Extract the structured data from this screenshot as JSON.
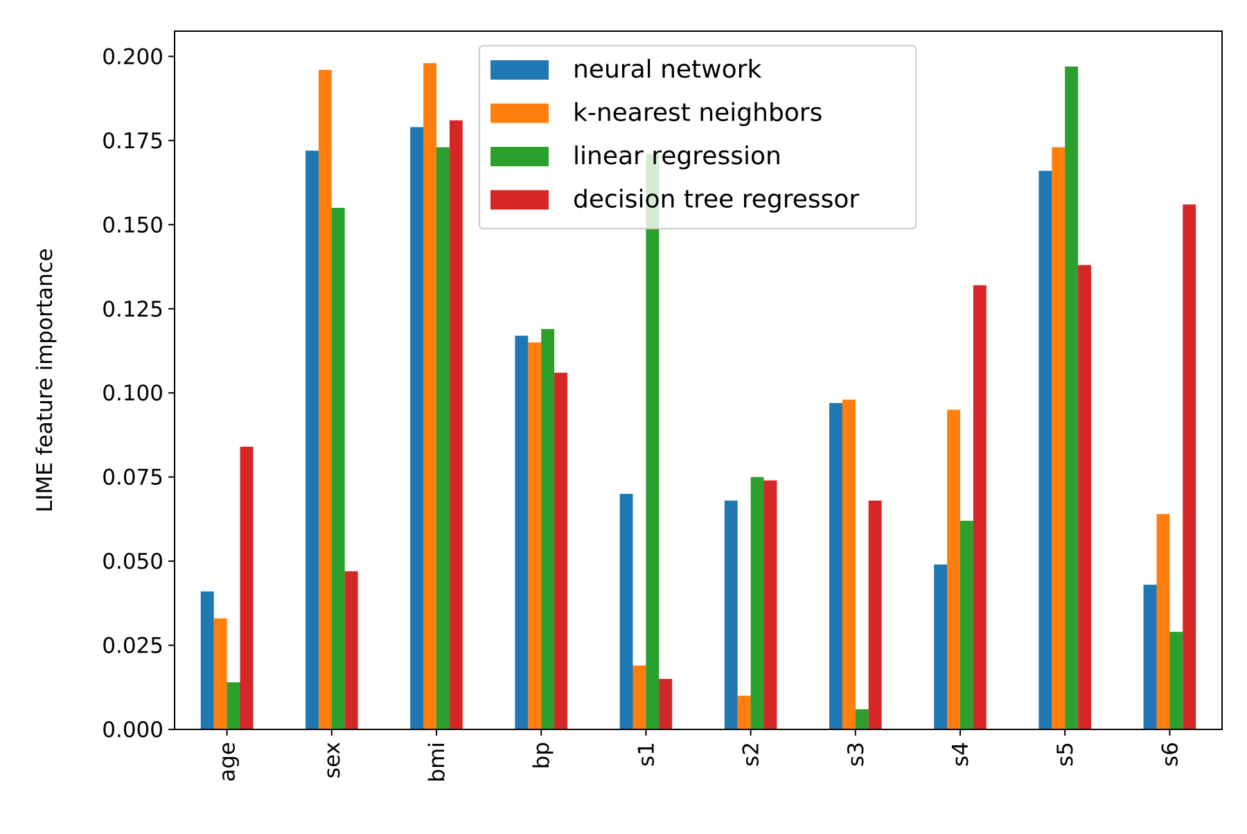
{
  "chart_data": {
    "type": "bar",
    "title": "",
    "xlabel": "",
    "ylabel": "LIME feature importance",
    "categories": [
      "age",
      "sex",
      "bmi",
      "bp",
      "s1",
      "s2",
      "s3",
      "s4",
      "s5",
      "s6"
    ],
    "series": [
      {
        "name": "neural network",
        "color": "#1f77b4",
        "values": [
          0.041,
          0.172,
          0.179,
          0.117,
          0.07,
          0.068,
          0.097,
          0.049,
          0.166,
          0.043
        ]
      },
      {
        "name": "k-nearest neighbors",
        "color": "#ff7f0e",
        "values": [
          0.033,
          0.196,
          0.198,
          0.115,
          0.019,
          0.01,
          0.098,
          0.095,
          0.173,
          0.064
        ]
      },
      {
        "name": "linear regression",
        "color": "#2ca02c",
        "values": [
          0.014,
          0.155,
          0.173,
          0.119,
          0.171,
          0.075,
          0.006,
          0.062,
          0.197,
          0.029
        ]
      },
      {
        "name": "decision tree regressor",
        "color": "#d62728",
        "values": [
          0.084,
          0.047,
          0.181,
          0.106,
          0.015,
          0.074,
          0.068,
          0.132,
          0.138,
          0.156
        ]
      }
    ],
    "ylim": [
      0,
      0.2075
    ],
    "yticks": [
      "0.000",
      "0.025",
      "0.050",
      "0.075",
      "0.100",
      "0.125",
      "0.150",
      "0.175",
      "0.200"
    ],
    "grid": false,
    "legend_position": "top-center"
  }
}
